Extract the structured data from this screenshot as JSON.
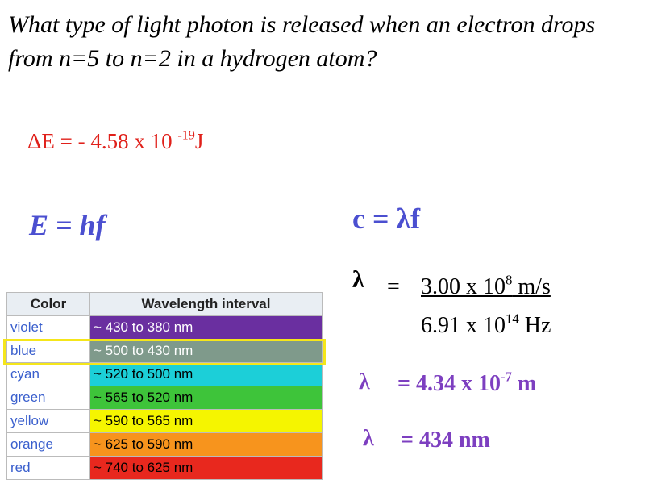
{
  "question": "What type of light photon is released when an electron drops from n=5 to n=2 in a hydrogen atom?",
  "delta_e": {
    "text": "ΔE = - 4.58 x 10 ",
    "exponent": "-19",
    "unit": "J"
  },
  "formula_energy": "E = hf",
  "formula_speed": "c = λf",
  "lambda_step1": {
    "symbol": "λ",
    "equals": "=",
    "numerator": "3.00 x 10",
    "numerator_exponent": "8",
    "numerator_unit": " m/s",
    "denominator": "6.91 x 10",
    "denominator_exponent": "14",
    "denominator_unit": " Hz"
  },
  "lambda_step2": {
    "symbol": "λ",
    "text": "= 4.34 x 10",
    "exponent": "-7",
    "unit": " m"
  },
  "lambda_step3": {
    "symbol": "λ",
    "text": "= 434 nm"
  },
  "table": {
    "header": [
      "Color",
      "Wavelength interval"
    ],
    "rows": [
      [
        "violet",
        "~ 430 to 380 nm"
      ],
      [
        "blue",
        "~ 500 to 430 nm"
      ],
      [
        "cyan",
        "~ 520 to 500 nm"
      ],
      [
        "green",
        "~ 565 to 520 nm"
      ],
      [
        "yellow",
        "~ 590 to 565 nm"
      ],
      [
        "orange",
        "~ 625 to 590 nm"
      ],
      [
        "red",
        "~ 740 to 625 nm"
      ]
    ]
  }
}
